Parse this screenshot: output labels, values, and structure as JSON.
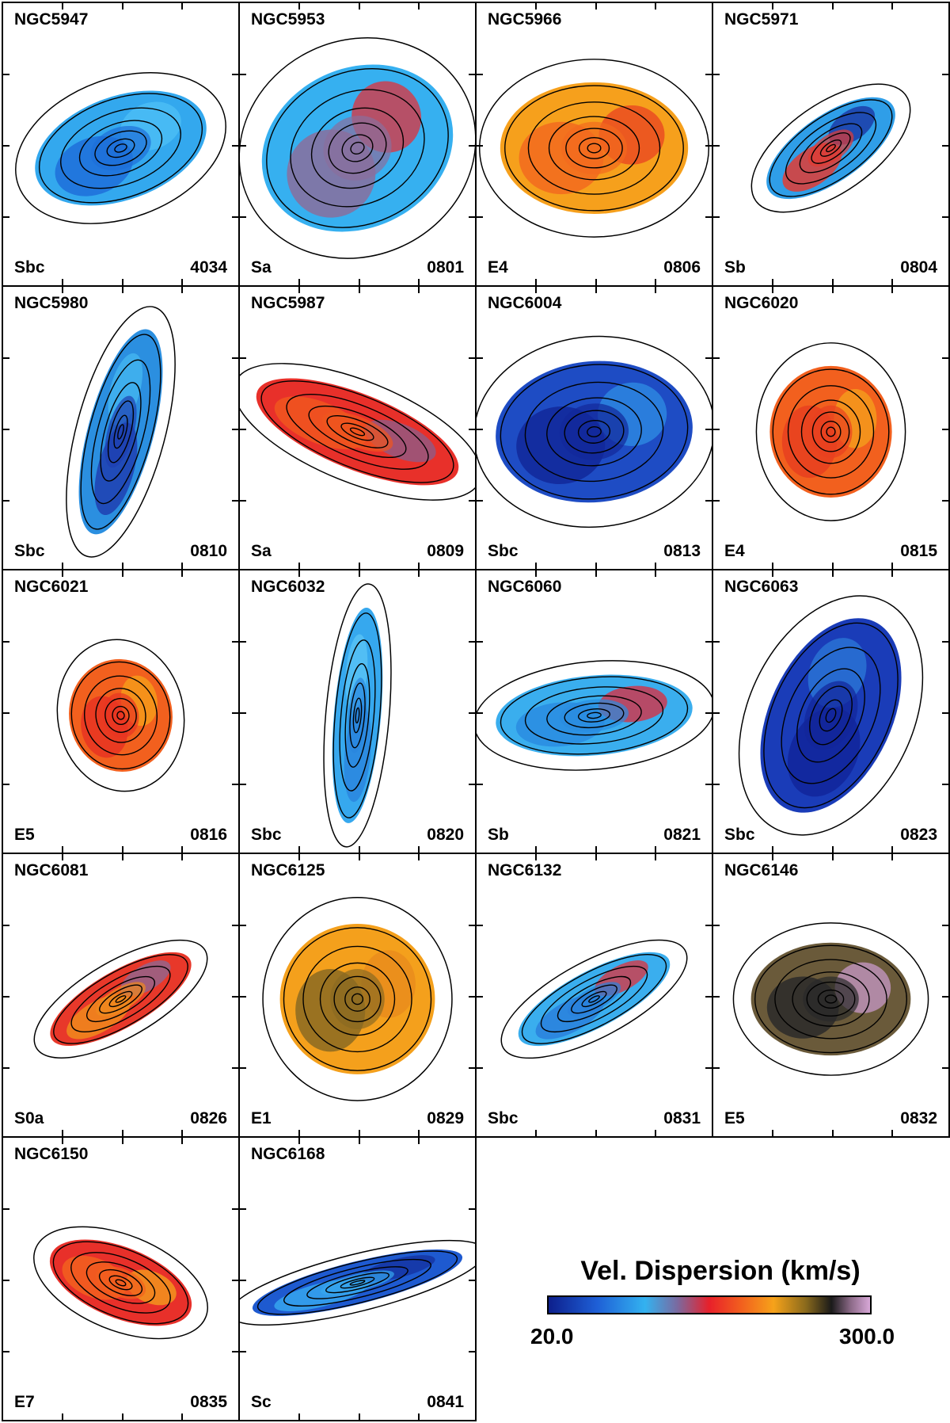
{
  "panels": [
    {
      "name": "NGC5947",
      "type": "Sbc",
      "plate": "4034",
      "palette": [
        "#33a8ee",
        "#1e6fd9",
        "#4fc0f5"
      ]
    },
    {
      "name": "NGC5953",
      "type": "Sa",
      "plate": "0801",
      "palette": [
        "#36b0f0",
        "#8a6e9c",
        "#e2303a"
      ]
    },
    {
      "name": "NGC5966",
      "type": "E4",
      "plate": "0806",
      "palette": [
        "#f6a01c",
        "#f26a1e",
        "#e84222"
      ]
    },
    {
      "name": "NGC5971",
      "type": "Sb",
      "plate": "0804",
      "palette": [
        "#2f9ee8",
        "#e23b32",
        "#1a2fa0"
      ]
    },
    {
      "name": "NGC5980",
      "type": "Sbc",
      "plate": "0810",
      "palette": [
        "#2b8fe0",
        "#1e3fb0",
        "#45b8f2"
      ]
    },
    {
      "name": "NGC5987",
      "type": "Sa",
      "plate": "0809",
      "palette": [
        "#e8302a",
        "#f0561e",
        "#8a5e8c"
      ]
    },
    {
      "name": "NGC6004",
      "type": "Sbc",
      "plate": "0813",
      "palette": [
        "#1e4cc4",
        "#12289a",
        "#2f8ee4"
      ]
    },
    {
      "name": "NGC6020",
      "type": "E4",
      "plate": "0815",
      "palette": [
        "#f2601e",
        "#e84020",
        "#f4a21c"
      ]
    },
    {
      "name": "NGC6021",
      "type": "E5",
      "plate": "0816",
      "palette": [
        "#f2601e",
        "#e83422",
        "#f6a21a"
      ]
    },
    {
      "name": "NGC6032",
      "type": "Sbc",
      "plate": "0820",
      "palette": [
        "#36a8ee",
        "#2a86de",
        "#5cc6f6"
      ]
    },
    {
      "name": "NGC6060",
      "type": "Sb",
      "plate": "0821",
      "palette": [
        "#3aaeee",
        "#2a8ce0",
        "#e0283a"
      ]
    },
    {
      "name": "NGC6063",
      "type": "Sbc",
      "plate": "0823",
      "palette": [
        "#1a3cb8",
        "#12259a",
        "#2c7ad8"
      ]
    },
    {
      "name": "NGC6081",
      "type": "S0a",
      "plate": "0826",
      "palette": [
        "#e8382a",
        "#f08a1c",
        "#8a6a98"
      ]
    },
    {
      "name": "NGC6125",
      "type": "E1",
      "plate": "0829",
      "palette": [
        "#f4a01c",
        "#8a6a22",
        "#e88a1c"
      ]
    },
    {
      "name": "NGC6132",
      "type": "Sbc",
      "plate": "0831",
      "palette": [
        "#3aaeee",
        "#2a80dc",
        "#e0303a"
      ]
    },
    {
      "name": "NGC6146",
      "type": "E5",
      "plate": "0832",
      "palette": [
        "#6a5a3a",
        "#2a2a2a",
        "#c89ac8"
      ]
    },
    {
      "name": "NGC6150",
      "type": "E7",
      "plate": "0835",
      "palette": [
        "#e8302a",
        "#f2601e",
        "#f4a21c"
      ]
    },
    {
      "name": "NGC6168",
      "type": "Sc",
      "plate": "0841",
      "palette": [
        "#1e5ad0",
        "#36a6ee",
        "#14309e"
      ]
    }
  ],
  "legend": {
    "title": "Vel. Dispersion (km/s)",
    "min": "20.0",
    "max": "300.0"
  }
}
